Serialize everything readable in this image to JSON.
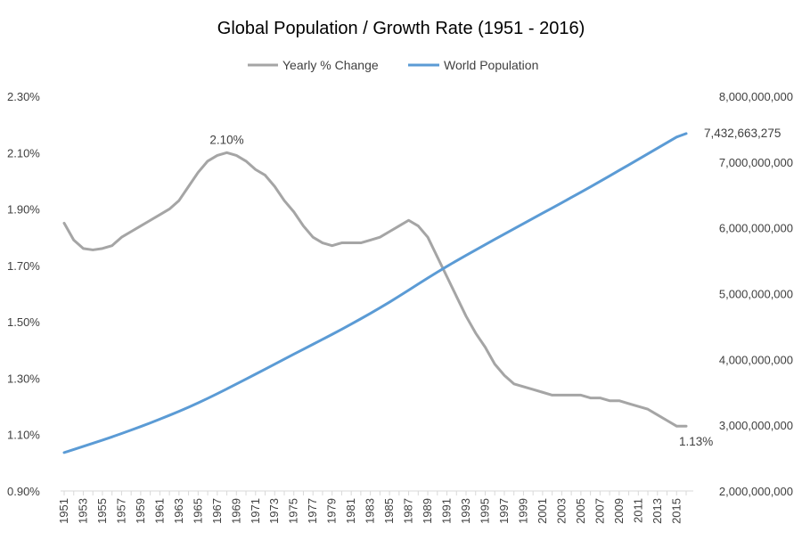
{
  "chart_data": {
    "type": "line",
    "title": "Global Population / Growth Rate (1951 - 2016)",
    "legend": {
      "position": "top-center",
      "entries": [
        "Yearly % Change",
        "World Population"
      ]
    },
    "grid": false,
    "x": [
      1951,
      1952,
      1953,
      1954,
      1955,
      1956,
      1957,
      1958,
      1959,
      1960,
      1961,
      1962,
      1963,
      1964,
      1965,
      1966,
      1967,
      1968,
      1969,
      1970,
      1971,
      1972,
      1973,
      1974,
      1975,
      1976,
      1977,
      1978,
      1979,
      1980,
      1981,
      1982,
      1983,
      1984,
      1985,
      1986,
      1987,
      1988,
      1989,
      1990,
      1991,
      1992,
      1993,
      1994,
      1995,
      1996,
      1997,
      1998,
      1999,
      2000,
      2001,
      2002,
      2003,
      2004,
      2005,
      2006,
      2007,
      2008,
      2009,
      2010,
      2011,
      2012,
      2013,
      2014,
      2015,
      2016
    ],
    "x_tick_labels": [
      "1951",
      "1953",
      "1955",
      "1957",
      "1959",
      "1961",
      "1963",
      "1965",
      "1967",
      "1969",
      "1971",
      "1973",
      "1975",
      "1977",
      "1979",
      "1981",
      "1983",
      "1985",
      "1987",
      "1989",
      "1991",
      "1993",
      "1995",
      "1997",
      "1999",
      "2001",
      "2003",
      "2005",
      "2007",
      "2009",
      "2011",
      "2013",
      "2015"
    ],
    "y_left": {
      "range": [
        0.009,
        0.023
      ],
      "ticks": [
        0.009,
        0.011,
        0.013,
        0.015,
        0.017,
        0.019,
        0.021,
        0.023
      ],
      "tick_labels": [
        "0.90%",
        "1.10%",
        "1.30%",
        "1.50%",
        "1.70%",
        "1.90%",
        "2.10%",
        "2.30%"
      ]
    },
    "y_right": {
      "range": [
        2000000000,
        8000000000
      ],
      "ticks": [
        2000000000,
        3000000000,
        4000000000,
        5000000000,
        6000000000,
        7000000000,
        8000000000
      ],
      "tick_labels": [
        "2,000,000,000",
        "3,000,000,000",
        "4,000,000,000",
        "5,000,000,000",
        "6,000,000,000",
        "7,000,000,000",
        "8,000,000,000"
      ]
    },
    "series": [
      {
        "name": "Yearly % Change",
        "axis": "left",
        "color": "#a5a5a5",
        "values": [
          0.0185,
          0.0179,
          0.0176,
          0.01755,
          0.0176,
          0.0177,
          0.018,
          0.0182,
          0.0184,
          0.0186,
          0.0188,
          0.019,
          0.0193,
          0.0198,
          0.0203,
          0.0207,
          0.0209,
          0.021,
          0.0209,
          0.0207,
          0.0204,
          0.0202,
          0.0198,
          0.0193,
          0.0189,
          0.0184,
          0.018,
          0.0178,
          0.0177,
          0.0178,
          0.0178,
          0.0178,
          0.0179,
          0.018,
          0.0182,
          0.0184,
          0.0186,
          0.0184,
          0.018,
          0.0173,
          0.0166,
          0.0159,
          0.0152,
          0.0146,
          0.0141,
          0.0135,
          0.0131,
          0.0128,
          0.0127,
          0.0126,
          0.0125,
          0.0124,
          0.0124,
          0.0124,
          0.0124,
          0.0123,
          0.0123,
          0.0122,
          0.0122,
          0.0121,
          0.012,
          0.0119,
          0.0117,
          0.0115,
          0.0113,
          0.0113
        ]
      },
      {
        "name": "World Population",
        "axis": "right",
        "color": "#5b9bd5",
        "values": [
          2584034261,
          2630861562,
          2677608960,
          2724846741,
          2773019936,
          2822443282,
          2873306090,
          2925686705,
          2979576185,
          3034949748,
          3091843507,
          3150420795,
          3211001009,
          3273978338,
          3339583597,
          3407922630,
          3478769962,
          3551599127,
          3625680627,
          3700437046,
          3775759617,
          3851650245,
          3927780238,
          4003794172,
          4079480606,
          4154666864,
          4229506060,
          4304533501,
          4380506100,
          4458003514,
          4536996762,
          4617386542,
          4699569304,
          4784011621,
          4870921740,
          4960567912,
          5052522147,
          5145426008,
          5237441558,
          5327231061,
          5414289444,
          5498919809,
          5581597546,
          5663150427,
          5744212979,
          5824891951,
          5905045788,
          5984793942,
          6064239055,
          6143493823,
          6222626606,
          6301773188,
          6381185114,
          6461159389,
          6541907027,
          6623517833,
          6705946610,
          6789088686,
          6872767093,
          6956823603,
          7041194301,
          7125828059,
          7210581976,
          7295290765,
          7379797139,
          7432663275
        ]
      }
    ],
    "annotations": [
      {
        "series": "Yearly % Change",
        "x": 1968,
        "text": "2.10%"
      },
      {
        "series": "Yearly % Change",
        "x": 2016,
        "text": "1.13%"
      },
      {
        "series": "World Population",
        "x": 2016,
        "text": "7,432,663,275"
      }
    ]
  }
}
